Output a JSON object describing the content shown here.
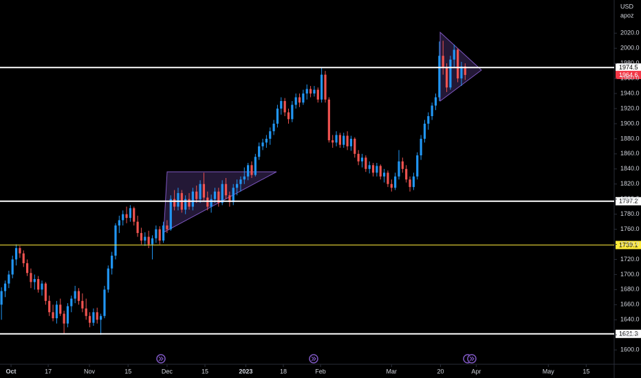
{
  "chart_data": {
    "type": "candlestick",
    "currency": "USD",
    "symbol": "apoz",
    "up_color": "#2196f3",
    "down_color": "#ef5350",
    "candles": [
      [
        1660,
        1683,
        1640,
        1678
      ],
      [
        1678,
        1692,
        1670,
        1688
      ],
      [
        1688,
        1705,
        1682,
        1700
      ],
      [
        1700,
        1725,
        1695,
        1720
      ],
      [
        1720,
        1740,
        1712,
        1735
      ],
      [
        1735,
        1738,
        1722,
        1728
      ],
      [
        1728,
        1732,
        1710,
        1715
      ],
      [
        1715,
        1720,
        1698,
        1702
      ],
      [
        1702,
        1708,
        1682,
        1690
      ],
      [
        1690,
        1700,
        1680,
        1694
      ],
      [
        1694,
        1698,
        1676,
        1680
      ],
      [
        1680,
        1692,
        1672,
        1688
      ],
      [
        1688,
        1690,
        1660,
        1665
      ],
      [
        1665,
        1672,
        1645,
        1650
      ],
      [
        1650,
        1660,
        1638,
        1642
      ],
      [
        1642,
        1665,
        1635,
        1660
      ],
      [
        1660,
        1668,
        1645,
        1648
      ],
      [
        1648,
        1652,
        1622,
        1635
      ],
      [
        1635,
        1662,
        1630,
        1658
      ],
      [
        1658,
        1672,
        1650,
        1668
      ],
      [
        1668,
        1685,
        1662,
        1678
      ],
      [
        1678,
        1682,
        1660,
        1665
      ],
      [
        1665,
        1675,
        1650,
        1655
      ],
      [
        1655,
        1668,
        1640,
        1645
      ],
      [
        1645,
        1650,
        1630,
        1636
      ],
      [
        1636,
        1655,
        1632,
        1650
      ],
      [
        1650,
        1656,
        1635,
        1640
      ],
      [
        1640,
        1648,
        1620,
        1645
      ],
      [
        1645,
        1685,
        1642,
        1680
      ],
      [
        1680,
        1712,
        1676,
        1708
      ],
      [
        1708,
        1730,
        1700,
        1725
      ],
      [
        1725,
        1768,
        1720,
        1765
      ],
      [
        1765,
        1778,
        1755,
        1772
      ],
      [
        1772,
        1785,
        1765,
        1780
      ],
      [
        1780,
        1790,
        1768,
        1775
      ],
      [
        1775,
        1792,
        1770,
        1788
      ],
      [
        1788,
        1790,
        1765,
        1770
      ],
      [
        1770,
        1778,
        1750,
        1755
      ],
      [
        1755,
        1762,
        1740,
        1745
      ],
      [
        1745,
        1756,
        1738,
        1750
      ],
      [
        1750,
        1758,
        1735,
        1740
      ],
      [
        1740,
        1752,
        1720,
        1748
      ],
      [
        1748,
        1765,
        1742,
        1760
      ],
      [
        1760,
        1764,
        1740,
        1745
      ],
      [
        1745,
        1770,
        1742,
        1765
      ],
      [
        1765,
        1772,
        1755,
        1760
      ],
      [
        1760,
        1805,
        1758,
        1800
      ],
      [
        1800,
        1812,
        1785,
        1790
      ],
      [
        1790,
        1815,
        1785,
        1808
      ],
      [
        1808,
        1812,
        1782,
        1786
      ],
      [
        1786,
        1805,
        1780,
        1800
      ],
      [
        1800,
        1808,
        1786,
        1790
      ],
      [
        1790,
        1815,
        1785,
        1810
      ],
      [
        1810,
        1818,
        1795,
        1800
      ],
      [
        1800,
        1825,
        1795,
        1820
      ],
      [
        1820,
        1835,
        1798,
        1802
      ],
      [
        1802,
        1810,
        1785,
        1790
      ],
      [
        1790,
        1806,
        1782,
        1800
      ],
      [
        1800,
        1815,
        1795,
        1810
      ],
      [
        1810,
        1815,
        1790,
        1795
      ],
      [
        1795,
        1825,
        1792,
        1820
      ],
      [
        1820,
        1828,
        1800,
        1805
      ],
      [
        1805,
        1810,
        1790,
        1796
      ],
      [
        1796,
        1820,
        1792,
        1815
      ],
      [
        1815,
        1826,
        1805,
        1820
      ],
      [
        1820,
        1830,
        1810,
        1826
      ],
      [
        1826,
        1842,
        1820,
        1830
      ],
      [
        1830,
        1848,
        1825,
        1845
      ],
      [
        1845,
        1850,
        1828,
        1832
      ],
      [
        1832,
        1860,
        1830,
        1856
      ],
      [
        1856,
        1875,
        1852,
        1870
      ],
      [
        1870,
        1880,
        1865,
        1875
      ],
      [
        1875,
        1885,
        1868,
        1880
      ],
      [
        1880,
        1895,
        1872,
        1890
      ],
      [
        1890,
        1905,
        1885,
        1900
      ],
      [
        1900,
        1925,
        1895,
        1920
      ],
      [
        1920,
        1935,
        1912,
        1930
      ],
      [
        1930,
        1934,
        1910,
        1915
      ],
      [
        1915,
        1920,
        1900,
        1906
      ],
      [
        1906,
        1930,
        1902,
        1925
      ],
      [
        1925,
        1940,
        1920,
        1935
      ],
      [
        1935,
        1940,
        1922,
        1928
      ],
      [
        1928,
        1945,
        1925,
        1940
      ],
      [
        1940,
        1952,
        1932,
        1946
      ],
      [
        1946,
        1950,
        1935,
        1940
      ],
      [
        1940,
        1950,
        1936,
        1945
      ],
      [
        1945,
        1948,
        1928,
        1932
      ],
      [
        1932,
        1975,
        1928,
        1965
      ],
      [
        1965,
        1970,
        1928,
        1932
      ],
      [
        1932,
        1935,
        1875,
        1878
      ],
      [
        1878,
        1885,
        1868,
        1875
      ],
      [
        1875,
        1890,
        1870,
        1885
      ],
      [
        1885,
        1888,
        1868,
        1872
      ],
      [
        1872,
        1888,
        1868,
        1884
      ],
      [
        1884,
        1890,
        1865,
        1870
      ],
      [
        1870,
        1884,
        1864,
        1880
      ],
      [
        1880,
        1882,
        1855,
        1860
      ],
      [
        1860,
        1865,
        1845,
        1850
      ],
      [
        1850,
        1860,
        1842,
        1855
      ],
      [
        1855,
        1858,
        1836,
        1840
      ],
      [
        1840,
        1850,
        1834,
        1845
      ],
      [
        1845,
        1848,
        1830,
        1835
      ],
      [
        1835,
        1848,
        1830,
        1844
      ],
      [
        1844,
        1846,
        1826,
        1830
      ],
      [
        1830,
        1840,
        1822,
        1835
      ],
      [
        1835,
        1838,
        1816,
        1820
      ],
      [
        1820,
        1826,
        1810,
        1815
      ],
      [
        1815,
        1835,
        1812,
        1830
      ],
      [
        1830,
        1865,
        1826,
        1850
      ],
      [
        1850,
        1855,
        1835,
        1840
      ],
      [
        1840,
        1845,
        1822,
        1826
      ],
      [
        1826,
        1830,
        1810,
        1816
      ],
      [
        1816,
        1835,
        1812,
        1830
      ],
      [
        1830,
        1862,
        1826,
        1858
      ],
      [
        1858,
        1885,
        1852,
        1880
      ],
      [
        1880,
        1905,
        1875,
        1900
      ],
      [
        1900,
        1915,
        1892,
        1910
      ],
      [
        1910,
        1928,
        1905,
        1924
      ],
      [
        1924,
        1940,
        1918,
        1935
      ],
      [
        1935,
        2009,
        1930,
        1990
      ],
      [
        1990,
        2010,
        1965,
        1975
      ],
      [
        1975,
        1980,
        1942,
        1948
      ],
      [
        1948,
        1990,
        1945,
        1985
      ],
      [
        1985,
        2005,
        1975,
        1998
      ],
      [
        1998,
        2000,
        1955,
        1960
      ],
      [
        1960,
        1982,
        1950,
        1976
      ],
      [
        1976,
        1980,
        1958,
        1964.6
      ]
    ],
    "xlim": [
      -0.4,
      166.5
    ],
    "xticks": [
      {
        "value": 2.6,
        "label": "Oct"
      },
      {
        "value": 12.7,
        "label": "17"
      },
      {
        "value": 23.9,
        "label": "Nov"
      },
      {
        "value": 34.4,
        "label": "15"
      },
      {
        "value": 45,
        "label": "Dec"
      },
      {
        "value": 55.3,
        "label": "15"
      },
      {
        "value": 66.4,
        "label": "2023"
      },
      {
        "value": 76.6,
        "label": "18"
      },
      {
        "value": 86.7,
        "label": "Feb"
      },
      {
        "value": 106,
        "label": "Mar"
      },
      {
        "value": 119.3,
        "label": "20"
      },
      {
        "value": 129,
        "label": "Apr"
      },
      {
        "value": 148.6,
        "label": "May"
      },
      {
        "value": 158.9,
        "label": "15"
      }
    ],
    "ylim": [
      1581,
      2064
    ],
    "yticks": [
      {
        "value": 2020,
        "label": "2020.0"
      },
      {
        "value": 2000,
        "label": "2000.0"
      },
      {
        "value": 1980,
        "label": "1980.0"
      },
      {
        "value": 1960,
        "label": "1960.0"
      },
      {
        "value": 1940,
        "label": "1940.0"
      },
      {
        "value": 1920,
        "label": "1920.0"
      },
      {
        "value": 1900,
        "label": "1900.0"
      },
      {
        "value": 1880,
        "label": "1880.0"
      },
      {
        "value": 1860,
        "label": "1860.0"
      },
      {
        "value": 1840,
        "label": "1840.0"
      },
      {
        "value": 1820,
        "label": "1820.0"
      },
      {
        "value": 1800,
        "label": "1800.0"
      },
      {
        "value": 1780,
        "label": "1780.0"
      },
      {
        "value": 1760,
        "label": "1760.0"
      },
      {
        "value": 1740,
        "label": "1740.0"
      },
      {
        "value": 1720,
        "label": "1720.0"
      },
      {
        "value": 1700,
        "label": "1700.0"
      },
      {
        "value": 1680,
        "label": "1680.0"
      },
      {
        "value": 1660,
        "label": "1660.0"
      },
      {
        "value": 1640,
        "label": "1640.0"
      },
      {
        "value": 1620,
        "label": "1620.0"
      },
      {
        "value": 1600,
        "label": "1600.0"
      }
    ],
    "levels": [
      {
        "value": 1974.5,
        "color": "#ffffff"
      },
      {
        "value": 1797.2,
        "color": "#ffffff"
      },
      {
        "value": 1739.1,
        "color": "#ffeb3b"
      },
      {
        "value": 1621.3,
        "color": "#ffffff"
      }
    ],
    "last_price": 1964.6,
    "last_price_color": "#f23645"
  }
}
